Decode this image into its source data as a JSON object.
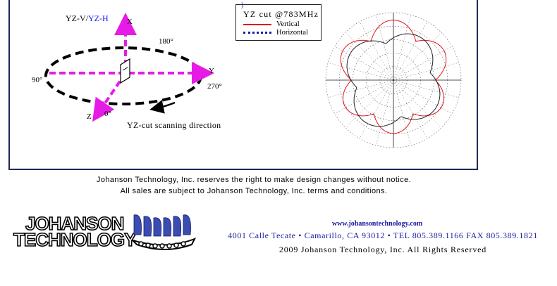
{
  "diagram": {
    "cut_label_prefix": "YZ-V/",
    "cut_label_suffix": "YZ-H",
    "axis_x": "X",
    "axis_y": "Y",
    "axis_z": "Z",
    "angle_0": "0°",
    "angle_90": "90°",
    "angle_180": "180°",
    "angle_270": "270°",
    "scan_direction": "YZ-cut scanning direction",
    "colors": {
      "axis": "#e61ce6",
      "ellipse": "#000000",
      "cut_h": "#1a1aff"
    }
  },
  "legend": {
    "marker": ")",
    "title": "YZ cut @783MHz",
    "vertical_label": "Vertical",
    "horizontal_label": "Horizontal",
    "colors": {
      "vertical": "#e0141e",
      "horizontal": "#1a1aa0"
    }
  },
  "disclaimer": {
    "line1": "Johanson Technology, Inc. reserves the right to make design changes without notice.",
    "line2": "All sales are subject to Johanson Technology, Inc. terms and conditions."
  },
  "footer": {
    "logo_line1": "JOHANSON",
    "logo_line2": "TECHNOLOGY",
    "website": "www.johansontechnology.com",
    "address": "4001 Calle Tecate • Camarillo, CA 93012 • TEL 805.389.1166 FAX 805.389.1821",
    "copyright": "2009 Johanson Technology, Inc. All Rights Reserved",
    "colors": {
      "website": "#1a1aa0",
      "address": "#1a1aa0",
      "logo_ship": "#3a4db0"
    }
  }
}
